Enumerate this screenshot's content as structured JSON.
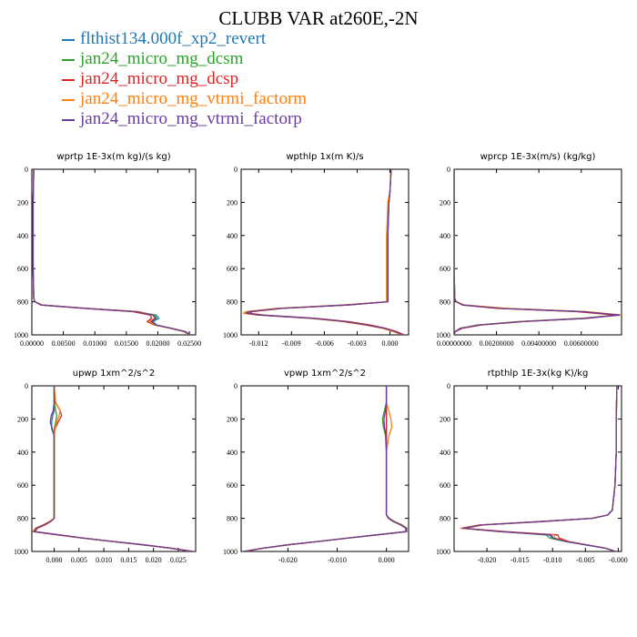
{
  "page": {
    "title": "CLUBB VAR at260E,-2N"
  },
  "legend": [
    {
      "name": "flthist134.000f_xp2_revert",
      "color": "#1f77b4"
    },
    {
      "name": "jan24_micro_mg_dcsm",
      "color": "#2ca02c"
    },
    {
      "name": "jan24_micro_mg_dcsp",
      "color": "#d62728"
    },
    {
      "name": "jan24_micro_mg_vtrmi_factorm",
      "color": "#ff7f0e"
    },
    {
      "name": "jan24_micro_mg_vtrmi_factorp",
      "color": "#6a3d9a"
    }
  ],
  "chart_data": [
    {
      "type": "line",
      "title": "wprtp  1E-3x(m kg)/(s kg)",
      "xlim": [
        0,
        0.026
      ],
      "ylim": [
        1000,
        0
      ],
      "xticks": [
        0,
        0.005,
        0.01,
        0.015,
        0.02,
        0.025
      ],
      "xtick_labels": [
        "0.00000",
        "0.00500",
        "0.01000",
        "0.01500",
        "0.02000",
        "0.02500"
      ],
      "yticks": [
        0,
        200,
        400,
        600,
        800,
        1000
      ],
      "series_y": [
        0,
        200,
        400,
        600,
        780,
        800,
        820,
        840,
        860,
        880,
        900,
        920,
        940,
        960,
        980,
        1000
      ],
      "series": [
        {
          "name": "flthist134.000f_xp2_revert",
          "values": [
            0.0003,
            0.0002,
            0.0002,
            0.0002,
            0.0003,
            0.0005,
            0.0015,
            0.0085,
            0.0165,
            0.0197,
            0.0202,
            0.0192,
            0.0198,
            0.0222,
            0.0243,
            0.0252
          ]
        },
        {
          "name": "jan24_micro_mg_dcsm",
          "values": [
            0.0003,
            0.0002,
            0.0002,
            0.0002,
            0.0003,
            0.0005,
            0.0016,
            0.0088,
            0.0168,
            0.0195,
            0.0198,
            0.0188,
            0.0196,
            0.022,
            0.0241,
            0.0251
          ]
        },
        {
          "name": "jan24_micro_mg_dcsp",
          "values": [
            0.0003,
            0.0002,
            0.0002,
            0.0002,
            0.0003,
            0.0005,
            0.0014,
            0.0082,
            0.016,
            0.0188,
            0.019,
            0.0183,
            0.0194,
            0.0221,
            0.0244,
            0.0252
          ]
        },
        {
          "name": "jan24_micro_mg_vtrmi_factorm",
          "values": [
            0.0003,
            0.0002,
            0.0002,
            0.0002,
            0.0003,
            0.0005,
            0.0017,
            0.009,
            0.017,
            0.0193,
            0.0195,
            0.0186,
            0.0195,
            0.0219,
            0.0242,
            0.0251
          ]
        },
        {
          "name": "jan24_micro_mg_vtrmi_factorp",
          "values": [
            0.0003,
            0.0002,
            0.0002,
            0.0002,
            0.0003,
            0.0005,
            0.0015,
            0.0086,
            0.0166,
            0.0192,
            0.0196,
            0.019,
            0.0197,
            0.0221,
            0.0243,
            0.0252
          ]
        }
      ]
    },
    {
      "type": "line",
      "title": "wpthlp  1x(m K)/s",
      "xlim": [
        -0.0136,
        0.0017
      ],
      "ylim": [
        1000,
        0
      ],
      "xticks": [
        -0.012,
        -0.009,
        -0.006,
        -0.003,
        0
      ],
      "xtick_labels": [
        "-0.012",
        "-0.009",
        "-0.006",
        "-0.003",
        "0.000"
      ],
      "yticks": [
        0,
        200,
        400,
        600,
        800,
        1000
      ],
      "series_y": [
        0,
        130,
        200,
        400,
        600,
        800,
        820,
        840,
        860,
        870,
        880,
        900,
        920,
        940,
        960,
        980,
        1000
      ],
      "series": [
        {
          "name": "flthist134.000f_xp2_revert",
          "values": [
            0.0001,
            0.0,
            -0.0001,
            -0.0002,
            -0.0002,
            -0.0002,
            -0.004,
            -0.01,
            -0.0128,
            -0.013,
            -0.0118,
            -0.007,
            -0.004,
            -0.002,
            -0.0005,
            0.0005,
            0.0012
          ]
        },
        {
          "name": "jan24_micro_mg_dcsm",
          "values": [
            0.0001,
            0.0,
            -0.0001,
            -0.0003,
            -0.0003,
            -0.0003,
            -0.0042,
            -0.0102,
            -0.013,
            -0.0132,
            -0.012,
            -0.0072,
            -0.0042,
            -0.0022,
            -0.0006,
            0.0004,
            0.0011
          ]
        },
        {
          "name": "jan24_micro_mg_dcsp",
          "values": [
            0.0001,
            0.0,
            -0.0001,
            -0.0002,
            -0.0002,
            -0.0002,
            -0.0038,
            -0.0098,
            -0.0126,
            -0.0128,
            -0.0116,
            -0.0068,
            -0.0038,
            -0.0018,
            -0.0004,
            0.0006,
            0.0013
          ]
        },
        {
          "name": "jan24_micro_mg_vtrmi_factorm",
          "values": [
            0.0001,
            0.0,
            -0.0002,
            -0.0003,
            -0.0003,
            -0.0003,
            -0.0044,
            -0.0104,
            -0.0132,
            -0.0134,
            -0.0121,
            -0.0073,
            -0.0043,
            -0.0023,
            -0.0007,
            0.0003,
            0.0011
          ]
        },
        {
          "name": "jan24_micro_mg_vtrmi_factorp",
          "values": [
            0.0001,
            0.0,
            -0.0001,
            -0.0002,
            -0.0002,
            -0.0002,
            -0.004,
            -0.01,
            -0.0129,
            -0.0131,
            -0.0119,
            -0.007,
            -0.0041,
            -0.0021,
            -0.0005,
            0.0005,
            0.0012
          ]
        }
      ]
    },
    {
      "type": "line",
      "title": "wprcp  1E-3x(m/s) (kg/kg)",
      "xlim": [
        0,
        0.0079
      ],
      "ylim": [
        1000,
        0
      ],
      "xticks": [
        0,
        0.002,
        0.004,
        0.006
      ],
      "xtick_labels": [
        "0.00000000",
        "0.00200000",
        "0.00400000",
        "0.00600000"
      ],
      "yticks": [
        0,
        200,
        400,
        600,
        800,
        1000
      ],
      "series_y": [
        0,
        200,
        400,
        600,
        780,
        800,
        820,
        840,
        860,
        880,
        900,
        920,
        940,
        960,
        980,
        1000
      ],
      "series": [
        {
          "name": "flthist134.000f_xp2_revert",
          "values": [
            0.0,
            0.0,
            0.0,
            0.0,
            3e-05,
            0.0001,
            0.0004,
            0.0022,
            0.006,
            0.0078,
            0.0062,
            0.0032,
            0.0012,
            0.0003,
            5e-05,
            0.0
          ]
        },
        {
          "name": "jan24_micro_mg_dcsm",
          "values": [
            0.0,
            0.0,
            0.0,
            0.0,
            3e-05,
            0.0001,
            0.0005,
            0.0024,
            0.0062,
            0.0077,
            0.006,
            0.003,
            0.0011,
            0.0003,
            5e-05,
            0.0
          ]
        },
        {
          "name": "jan24_micro_mg_dcsp",
          "values": [
            0.0,
            0.0,
            0.0,
            0.0,
            3e-05,
            0.0001,
            0.0004,
            0.002,
            0.0058,
            0.0076,
            0.0063,
            0.0033,
            0.0013,
            0.0004,
            6e-05,
            0.0
          ]
        },
        {
          "name": "jan24_micro_mg_vtrmi_factorm",
          "values": [
            0.0,
            0.0,
            0.0,
            0.0,
            3e-05,
            0.0001,
            0.0005,
            0.0025,
            0.0063,
            0.0079,
            0.0061,
            0.0031,
            0.0012,
            0.0003,
            5e-05,
            0.0
          ]
        },
        {
          "name": "jan24_micro_mg_vtrmi_factorp",
          "values": [
            0.0,
            0.0,
            0.0,
            0.0,
            3e-05,
            0.0001,
            0.0004,
            0.0022,
            0.0061,
            0.0078,
            0.0062,
            0.0032,
            0.0012,
            0.0003,
            5e-05,
            0.0
          ]
        }
      ]
    },
    {
      "type": "line",
      "title": "upwp   1xm^2/s^2",
      "xlim": [
        -0.0045,
        0.0285
      ],
      "ylim": [
        1000,
        0
      ],
      "xticks": [
        0,
        0.005,
        0.01,
        0.015,
        0.02,
        0.025
      ],
      "xtick_labels": [
        "0.000",
        "0.005",
        "0.010",
        "0.015",
        "0.020",
        "0.025"
      ],
      "yticks": [
        0,
        200,
        400,
        600,
        800,
        1000
      ],
      "series_y": [
        0,
        100,
        150,
        180,
        220,
        260,
        300,
        400,
        600,
        780,
        800,
        820,
        840,
        860,
        880,
        900,
        920,
        940,
        960,
        980,
        1000
      ],
      "series": [
        {
          "name": "flthist134.000f_xp2_revert",
          "values": [
            0.0,
            0.0,
            0.0,
            -0.0003,
            -0.0005,
            -0.0005,
            0.0,
            0.0,
            0.0,
            0.0,
            0.0,
            -0.0008,
            -0.002,
            -0.0035,
            -0.004,
            0.001,
            0.006,
            0.012,
            0.018,
            0.0235,
            0.028
          ]
        },
        {
          "name": "jan24_micro_mg_dcsm",
          "values": [
            0.0,
            0.0,
            0.0003,
            0.0005,
            0.0003,
            0.0,
            0.0,
            0.0,
            0.0,
            0.0,
            0.0,
            -0.0009,
            -0.0022,
            -0.0037,
            -0.0042,
            0.0008,
            0.0058,
            0.0118,
            0.0178,
            0.0233,
            0.0278
          ]
        },
        {
          "name": "jan24_micro_mg_dcsp",
          "values": [
            0.0,
            0.0002,
            0.0012,
            0.0015,
            0.0008,
            0.0002,
            0.0,
            0.0,
            0.0,
            0.0,
            0.0,
            -0.0007,
            -0.0019,
            -0.0034,
            -0.0039,
            0.0011,
            0.0061,
            0.0121,
            0.0181,
            0.0236,
            0.0281
          ]
        },
        {
          "name": "jan24_micro_mg_vtrmi_factorm",
          "values": [
            0.0,
            0.0003,
            0.0012,
            0.001,
            0.0005,
            0.0002,
            0.0,
            0.0,
            0.0,
            0.0,
            0.0,
            -0.001,
            -0.0023,
            -0.0038,
            -0.0043,
            0.0007,
            0.0057,
            0.0117,
            0.0177,
            0.0232,
            0.0277
          ]
        },
        {
          "name": "jan24_micro_mg_vtrmi_factorp",
          "values": [
            0.0,
            0.0,
            -0.0002,
            -0.0006,
            -0.0008,
            -0.0004,
            0.0,
            0.0,
            0.0,
            0.0,
            0.0,
            -0.0008,
            -0.0021,
            -0.0036,
            -0.0041,
            0.0009,
            0.0059,
            0.0119,
            0.0179,
            0.0234,
            0.0279
          ]
        }
      ]
    },
    {
      "type": "line",
      "title": "vpwp   1xm^2/s^2",
      "xlim": [
        -0.0295,
        0.0045
      ],
      "ylim": [
        1000,
        0
      ],
      "xticks": [
        -0.02,
        -0.01,
        0
      ],
      "xtick_labels": [
        "-0.020",
        "-0.010",
        "0.000"
      ],
      "yticks": [
        0,
        200,
        400,
        600,
        800,
        1000
      ],
      "series_y": [
        0,
        100,
        150,
        200,
        250,
        300,
        400,
        600,
        780,
        800,
        820,
        840,
        860,
        880,
        900,
        920,
        940,
        960,
        980,
        1000
      ],
      "series": [
        {
          "name": "flthist134.000f_xp2_revert",
          "values": [
            0.0,
            0.0,
            0.0,
            0.0,
            0.0,
            0.0,
            0.0,
            0.0,
            0.0,
            0.0005,
            0.0015,
            0.003,
            0.004,
            0.004,
            -0.002,
            -0.008,
            -0.014,
            -0.02,
            -0.025,
            -0.029
          ]
        },
        {
          "name": "jan24_micro_mg_dcsm",
          "values": [
            0.0,
            0.0,
            -0.0004,
            -0.0008,
            -0.0006,
            -0.0002,
            0.0,
            0.0,
            0.0,
            0.0006,
            0.0017,
            0.0032,
            0.0042,
            0.0041,
            -0.0019,
            -0.0079,
            -0.0139,
            -0.0199,
            -0.0249,
            -0.0289
          ]
        },
        {
          "name": "jan24_micro_mg_dcsp",
          "values": [
            0.0,
            0.0,
            0.0,
            0.0,
            0.0,
            0.0,
            0.0,
            0.0,
            0.0,
            0.0004,
            0.0014,
            0.0029,
            0.0039,
            0.0039,
            -0.0021,
            -0.0081,
            -0.0141,
            -0.0201,
            -0.0251,
            -0.0291
          ]
        },
        {
          "name": "jan24_micro_mg_vtrmi_factorm",
          "values": [
            0.0,
            0.0,
            0.0005,
            0.0009,
            0.0011,
            0.0005,
            0.0,
            0.0,
            0.0,
            0.0005,
            0.0016,
            0.0031,
            0.0041,
            0.0042,
            -0.0018,
            -0.0078,
            -0.0138,
            -0.0198,
            -0.0248,
            -0.0288
          ]
        },
        {
          "name": "jan24_micro_mg_vtrmi_factorp",
          "values": [
            0.0,
            0.0,
            -0.0002,
            -0.0005,
            -0.0004,
            -0.0001,
            0.0,
            0.0,
            0.0,
            0.0005,
            0.0015,
            0.003,
            0.004,
            0.004,
            -0.002,
            -0.008,
            -0.014,
            -0.02,
            -0.025,
            -0.029
          ]
        }
      ]
    },
    {
      "type": "line",
      "title": "rtpthlp  1E-3x(kg K)/kg",
      "xlim": [
        -0.025,
        0.0005
      ],
      "ylim": [
        1000,
        0
      ],
      "xticks": [
        -0.02,
        -0.015,
        -0.01,
        -0.005,
        0
      ],
      "xtick_labels": [
        "-0.020",
        "-0.015",
        "-0.010",
        "-0.005",
        "-0.000"
      ],
      "yticks": [
        0,
        200,
        400,
        600,
        800,
        1000
      ],
      "series_y": [
        0,
        200,
        400,
        600,
        750,
        780,
        800,
        820,
        840,
        860,
        880,
        900,
        920,
        940,
        960,
        980,
        1000
      ],
      "series": [
        {
          "name": "flthist134.000f_xp2_revert",
          "values": [
            -0.0002,
            -0.0003,
            -0.0003,
            -0.0005,
            -0.0009,
            -0.0016,
            -0.004,
            -0.012,
            -0.021,
            -0.0238,
            -0.018,
            -0.0105,
            -0.01,
            -0.008,
            -0.005,
            -0.002,
            -0.0004
          ]
        },
        {
          "name": "jan24_micro_mg_dcsm",
          "values": [
            -0.0002,
            -0.0003,
            -0.0003,
            -0.0005,
            -0.0009,
            -0.0016,
            -0.004,
            -0.0118,
            -0.0208,
            -0.0236,
            -0.0178,
            -0.011,
            -0.0104,
            -0.008,
            -0.005,
            -0.002,
            -0.0004
          ]
        },
        {
          "name": "jan24_micro_mg_dcsp",
          "values": [
            -0.0002,
            -0.0003,
            -0.0003,
            -0.0005,
            -0.0009,
            -0.0016,
            -0.004,
            -0.0116,
            -0.0206,
            -0.0234,
            -0.0172,
            -0.0092,
            -0.009,
            -0.0075,
            -0.0048,
            -0.0019,
            -0.0004
          ]
        },
        {
          "name": "jan24_micro_mg_vtrmi_factorm",
          "values": [
            -0.0002,
            -0.0003,
            -0.0003,
            -0.0005,
            -0.0009,
            -0.0016,
            -0.0042,
            -0.0122,
            -0.0212,
            -0.024,
            -0.0182,
            -0.0098,
            -0.0096,
            -0.0078,
            -0.0049,
            -0.002,
            -0.0004
          ]
        },
        {
          "name": "jan24_micro_mg_vtrmi_factorp",
          "values": [
            -0.0002,
            -0.0003,
            -0.0003,
            -0.0005,
            -0.0009,
            -0.0016,
            -0.004,
            -0.012,
            -0.021,
            -0.0237,
            -0.0179,
            -0.0102,
            -0.0099,
            -0.0079,
            -0.005,
            -0.002,
            -0.0004
          ]
        }
      ]
    }
  ]
}
